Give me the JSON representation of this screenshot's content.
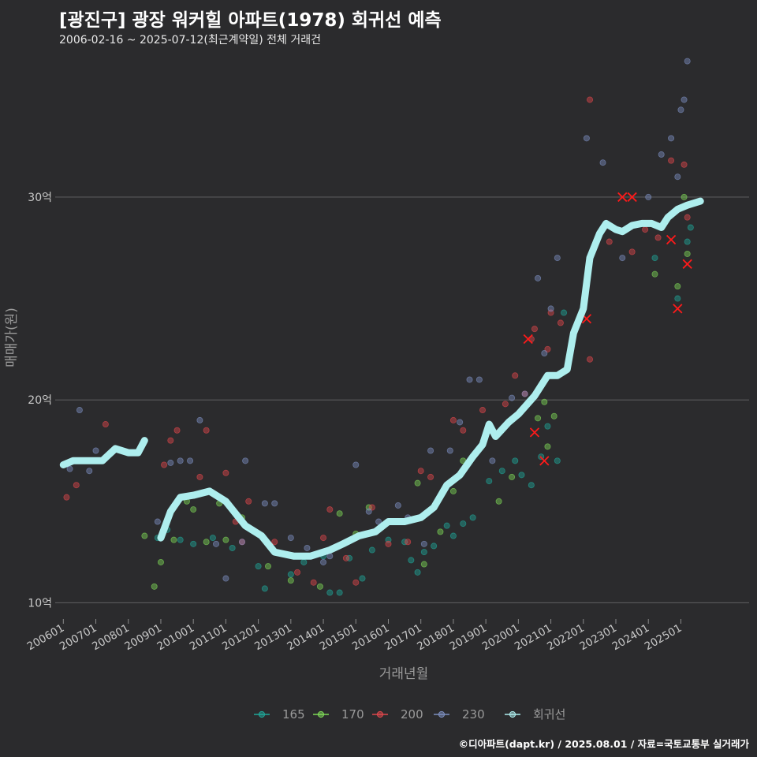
{
  "title": "[광진구] 광장 워커힐 아파트(1978) 회귀선 예측",
  "subtitle": "2006-02-16 ~ 2025-07-12(최근계약일) 전체 거래건",
  "footer": "©디아파트(dapt.kr) / 2025.08.01 / 자료=국토교통부 실거래가",
  "colors": {
    "background": "#2b2b2d",
    "grid": "#5a5a5c",
    "s165": "#1fa79a",
    "s170": "#7ed957",
    "s200": "#e0474c",
    "s230": "#7d8fc0",
    "regression": "#aeeeee",
    "cancel_mark": "#ff1a1a"
  },
  "chart_data": {
    "type": "scatter",
    "title": "[광진구] 광장 워커힐 아파트(1978) 회귀선 예측",
    "xlabel": "거래년월",
    "ylabel": "매매가(원)",
    "x_range": [
      2005.75,
      2027.1
    ],
    "y_range": [
      9.2,
      36.8
    ],
    "y_ticks": [
      10,
      20,
      30
    ],
    "y_tick_labels": [
      "10억",
      "20억",
      "30억"
    ],
    "x_ticks": [
      2006.0,
      2007.0,
      2008.0,
      2009.0,
      2010.0,
      2011.0,
      2012.0,
      2013.0,
      2014.0,
      2015.0,
      2016.0,
      2017.0,
      2018.0,
      2019.0,
      2020.0,
      2021.0,
      2022.0,
      2023.0,
      2024.0,
      2025.0
    ],
    "x_tick_labels": [
      "200601",
      "200701",
      "200801",
      "200901",
      "201001",
      "201101",
      "201201",
      "201301",
      "201401",
      "201501",
      "201601",
      "201701",
      "201801",
      "201901",
      "202001",
      "202101",
      "202201",
      "202301",
      "202401",
      "202501"
    ],
    "grid": "horizontal",
    "legend_position": "bottom",
    "series": [
      {
        "name": "165",
        "color": "#1fa79a",
        "points": [
          [
            2008.9,
            13.2
          ],
          [
            2009.2,
            13.6
          ],
          [
            2009.6,
            13.1
          ],
          [
            2010.0,
            12.9
          ],
          [
            2010.6,
            13.2
          ],
          [
            2011.2,
            12.7
          ],
          [
            2012.0,
            11.8
          ],
          [
            2012.2,
            10.7
          ],
          [
            2013.0,
            11.4
          ],
          [
            2013.4,
            12.0
          ],
          [
            2014.0,
            12.3
          ],
          [
            2014.2,
            10.5
          ],
          [
            2014.5,
            10.5
          ],
          [
            2014.8,
            12.2
          ],
          [
            2015.2,
            11.2
          ],
          [
            2015.5,
            12.6
          ],
          [
            2016.0,
            13.1
          ],
          [
            2016.3,
            14.0
          ],
          [
            2016.5,
            13.0
          ],
          [
            2016.7,
            12.1
          ],
          [
            2016.9,
            11.5
          ],
          [
            2017.1,
            12.5
          ],
          [
            2017.4,
            12.8
          ],
          [
            2017.8,
            13.8
          ],
          [
            2018.0,
            13.3
          ],
          [
            2018.3,
            13.9
          ],
          [
            2018.6,
            14.2
          ],
          [
            2019.1,
            16.0
          ],
          [
            2019.5,
            16.5
          ],
          [
            2019.9,
            17.0
          ],
          [
            2020.1,
            16.3
          ],
          [
            2020.4,
            15.8
          ],
          [
            2020.7,
            17.2
          ],
          [
            2020.9,
            18.7
          ],
          [
            2021.2,
            17.0
          ],
          [
            2021.4,
            24.3
          ],
          [
            2024.2,
            27.0
          ],
          [
            2024.9,
            25.0
          ],
          [
            2025.2,
            27.8
          ],
          [
            2025.3,
            28.5
          ]
        ]
      },
      {
        "name": "170",
        "color": "#7ed957",
        "points": [
          [
            2008.5,
            13.3
          ],
          [
            2008.8,
            10.8
          ],
          [
            2009.0,
            12.0
          ],
          [
            2009.4,
            13.1
          ],
          [
            2009.8,
            15.0
          ],
          [
            2010.0,
            14.6
          ],
          [
            2010.4,
            13.0
          ],
          [
            2010.8,
            14.9
          ],
          [
            2011.0,
            13.1
          ],
          [
            2011.5,
            14.2
          ],
          [
            2012.3,
            11.8
          ],
          [
            2013.0,
            11.1
          ],
          [
            2013.9,
            10.8
          ],
          [
            2014.5,
            14.4
          ],
          [
            2015.0,
            13.4
          ],
          [
            2015.4,
            14.7
          ],
          [
            2016.2,
            14.0
          ],
          [
            2016.9,
            15.9
          ],
          [
            2017.1,
            11.9
          ],
          [
            2017.6,
            13.5
          ],
          [
            2018.0,
            15.5
          ],
          [
            2018.3,
            17.0
          ],
          [
            2019.4,
            15.0
          ],
          [
            2019.8,
            16.2
          ],
          [
            2020.6,
            19.1
          ],
          [
            2020.8,
            19.9
          ],
          [
            2020.9,
            17.7
          ],
          [
            2021.1,
            19.2
          ],
          [
            2024.2,
            26.2
          ],
          [
            2024.9,
            25.6
          ],
          [
            2025.1,
            30.0
          ],
          [
            2025.2,
            27.2
          ]
        ]
      },
      {
        "name": "200",
        "color": "#e0474c",
        "points": [
          [
            2006.1,
            15.2
          ],
          [
            2006.4,
            15.8
          ],
          [
            2007.3,
            18.8
          ],
          [
            2009.1,
            16.8
          ],
          [
            2009.3,
            18.0
          ],
          [
            2009.5,
            18.5
          ],
          [
            2010.2,
            16.2
          ],
          [
            2010.4,
            18.5
          ],
          [
            2011.0,
            16.4
          ],
          [
            2011.3,
            14.0
          ],
          [
            2011.5,
            13.0
          ],
          [
            2011.7,
            15.0
          ],
          [
            2012.5,
            13.0
          ],
          [
            2013.2,
            11.5
          ],
          [
            2013.7,
            11.0
          ],
          [
            2014.0,
            13.2
          ],
          [
            2014.2,
            14.6
          ],
          [
            2014.7,
            12.2
          ],
          [
            2015.0,
            11.0
          ],
          [
            2015.5,
            14.7
          ],
          [
            2016.0,
            12.9
          ],
          [
            2016.6,
            13.0
          ],
          [
            2017.0,
            16.5
          ],
          [
            2017.3,
            16.2
          ],
          [
            2018.0,
            19.0
          ],
          [
            2018.3,
            18.5
          ],
          [
            2018.9,
            19.5
          ],
          [
            2019.6,
            19.8
          ],
          [
            2019.9,
            21.2
          ],
          [
            2020.2,
            20.3
          ],
          [
            2020.4,
            23.0
          ],
          [
            2020.5,
            23.5
          ],
          [
            2020.9,
            22.5
          ],
          [
            2021.0,
            24.3
          ],
          [
            2021.3,
            23.8
          ],
          [
            2022.2,
            22.0
          ],
          [
            2022.2,
            34.8
          ],
          [
            2022.8,
            27.8
          ],
          [
            2023.5,
            27.3
          ],
          [
            2023.9,
            28.4
          ],
          [
            2024.3,
            28.0
          ],
          [
            2024.7,
            31.8
          ],
          [
            2025.1,
            31.6
          ],
          [
            2025.2,
            29.0
          ]
        ]
      },
      {
        "name": "230",
        "color": "#7d8fc0",
        "points": [
          [
            2006.2,
            16.6
          ],
          [
            2006.5,
            19.5
          ],
          [
            2006.8,
            16.5
          ],
          [
            2007.0,
            17.5
          ],
          [
            2008.9,
            14.0
          ],
          [
            2009.3,
            16.9
          ],
          [
            2009.6,
            17.0
          ],
          [
            2009.9,
            17.0
          ],
          [
            2010.2,
            19.0
          ],
          [
            2010.7,
            12.9
          ],
          [
            2011.0,
            11.2
          ],
          [
            2011.5,
            13.0
          ],
          [
            2011.6,
            17.0
          ],
          [
            2012.2,
            14.9
          ],
          [
            2012.5,
            14.9
          ],
          [
            2013.0,
            13.2
          ],
          [
            2013.5,
            12.7
          ],
          [
            2014.0,
            12.0
          ],
          [
            2014.2,
            12.3
          ],
          [
            2015.0,
            16.8
          ],
          [
            2015.4,
            14.5
          ],
          [
            2015.7,
            14.0
          ],
          [
            2016.3,
            14.8
          ],
          [
            2016.6,
            14.2
          ],
          [
            2017.1,
            12.9
          ],
          [
            2017.3,
            17.5
          ],
          [
            2017.9,
            17.5
          ],
          [
            2018.2,
            18.9
          ],
          [
            2018.5,
            21.0
          ],
          [
            2018.8,
            21.0
          ],
          [
            2019.2,
            17.0
          ],
          [
            2019.8,
            20.1
          ],
          [
            2020.2,
            20.3
          ],
          [
            2020.6,
            26.0
          ],
          [
            2020.8,
            22.3
          ],
          [
            2021.0,
            24.5
          ],
          [
            2021.2,
            27.0
          ],
          [
            2022.1,
            32.9
          ],
          [
            2022.6,
            31.7
          ],
          [
            2023.2,
            27.0
          ],
          [
            2024.0,
            30.0
          ],
          [
            2024.4,
            32.1
          ],
          [
            2024.7,
            32.9
          ],
          [
            2024.9,
            31.0
          ],
          [
            2025.0,
            34.3
          ],
          [
            2025.1,
            34.8
          ],
          [
            2025.2,
            36.7
          ]
        ]
      }
    ],
    "regression": {
      "name": "회귀선",
      "color": "#aeeeee",
      "segments": [
        [
          [
            2006.0,
            16.8
          ],
          [
            2006.3,
            17.0
          ],
          [
            2006.7,
            17.0
          ],
          [
            2007.2,
            17.0
          ],
          [
            2007.4,
            17.3
          ],
          [
            2007.6,
            17.6
          ],
          [
            2008.0,
            17.4
          ],
          [
            2008.3,
            17.4
          ],
          [
            2008.5,
            18.0
          ]
        ],
        [
          [
            2009.0,
            13.2
          ],
          [
            2009.3,
            14.5
          ],
          [
            2009.6,
            15.2
          ],
          [
            2010.0,
            15.3
          ],
          [
            2010.5,
            15.5
          ],
          [
            2011.0,
            15.0
          ],
          [
            2011.6,
            13.8
          ],
          [
            2012.1,
            13.3
          ],
          [
            2012.5,
            12.5
          ],
          [
            2013.1,
            12.3
          ],
          [
            2013.6,
            12.3
          ],
          [
            2014.2,
            12.6
          ],
          [
            2014.6,
            12.9
          ],
          [
            2015.1,
            13.3
          ],
          [
            2015.6,
            13.5
          ],
          [
            2016.0,
            14.0
          ],
          [
            2016.5,
            14.0
          ],
          [
            2017.0,
            14.2
          ],
          [
            2017.4,
            14.7
          ],
          [
            2017.8,
            15.8
          ],
          [
            2018.2,
            16.3
          ],
          [
            2018.6,
            17.2
          ],
          [
            2018.9,
            17.8
          ],
          [
            2019.1,
            18.8
          ],
          [
            2019.3,
            18.2
          ],
          [
            2019.7,
            18.9
          ],
          [
            2020.0,
            19.3
          ],
          [
            2020.5,
            20.2
          ],
          [
            2020.9,
            21.2
          ],
          [
            2021.2,
            21.2
          ],
          [
            2021.5,
            21.5
          ],
          [
            2021.7,
            23.3
          ],
          [
            2022.0,
            24.5
          ],
          [
            2022.2,
            27.0
          ],
          [
            2022.5,
            28.2
          ],
          [
            2022.7,
            28.7
          ],
          [
            2023.0,
            28.4
          ],
          [
            2023.2,
            28.3
          ],
          [
            2023.5,
            28.6
          ],
          [
            2023.8,
            28.7
          ],
          [
            2024.1,
            28.7
          ],
          [
            2024.4,
            28.5
          ],
          [
            2024.6,
            29.0
          ],
          [
            2024.9,
            29.4
          ],
          [
            2025.2,
            29.6
          ],
          [
            2025.6,
            29.8
          ]
        ]
      ]
    },
    "cancelled_marks": [
      [
        2020.3,
        23.0
      ],
      [
        2020.5,
        18.4
      ],
      [
        2020.8,
        17.0
      ],
      [
        2022.1,
        24.0
      ],
      [
        2023.2,
        30.0
      ],
      [
        2023.5,
        30.0
      ],
      [
        2024.7,
        27.9
      ],
      [
        2024.9,
        24.5
      ],
      [
        2025.2,
        26.7
      ]
    ]
  },
  "legend": {
    "items": [
      {
        "label": "165",
        "color": "#1fa79a"
      },
      {
        "label": "170",
        "color": "#7ed957"
      },
      {
        "label": "200",
        "color": "#e0474c"
      },
      {
        "label": "230",
        "color": "#7d8fc0"
      },
      {
        "label": "회귀선",
        "color": "#aeeeee"
      }
    ]
  }
}
